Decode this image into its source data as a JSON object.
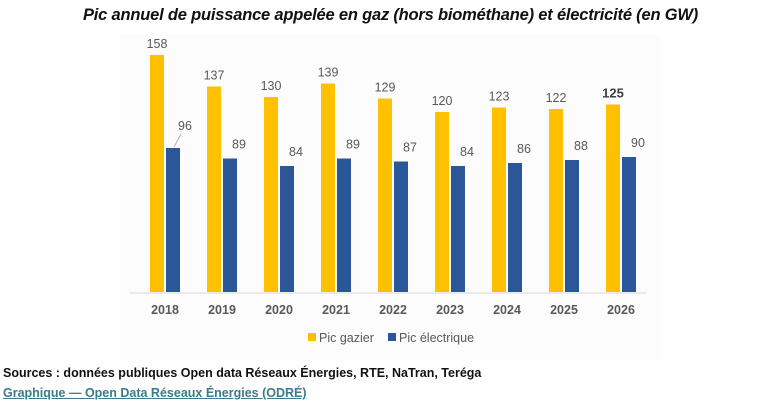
{
  "chart_data": {
    "type": "bar",
    "title": "Pic annuel de puissance appelée en gaz (hors biométhane) et électricité (en GW)",
    "xlabel": "",
    "ylabel": "",
    "ylim": [
      0,
      160
    ],
    "grid": false,
    "legend_position": "bottom-center",
    "categories": [
      "2018",
      "2019",
      "2020",
      "2021",
      "2022",
      "2023",
      "2024",
      "2025",
      "2026"
    ],
    "series": [
      {
        "name": "Pic gazier",
        "color": "#ffc000",
        "values": [
          158,
          137,
          130,
          139,
          129,
          120,
          123,
          122,
          125
        ]
      },
      {
        "name": "Pic électrique",
        "color": "#2b579a",
        "values": [
          96,
          89,
          84,
          89,
          87,
          84,
          86,
          88,
          90
        ]
      }
    ],
    "emphasized_label": {
      "series": "Pic gazier",
      "category": "2026"
    }
  },
  "footer": {
    "sources": "Sources : données publiques Open data Réseaux Énergies, RTE, NaTran, Teréga",
    "credit_link": "Graphique — Open Data Réseaux Énergies (ODRÉ)"
  }
}
